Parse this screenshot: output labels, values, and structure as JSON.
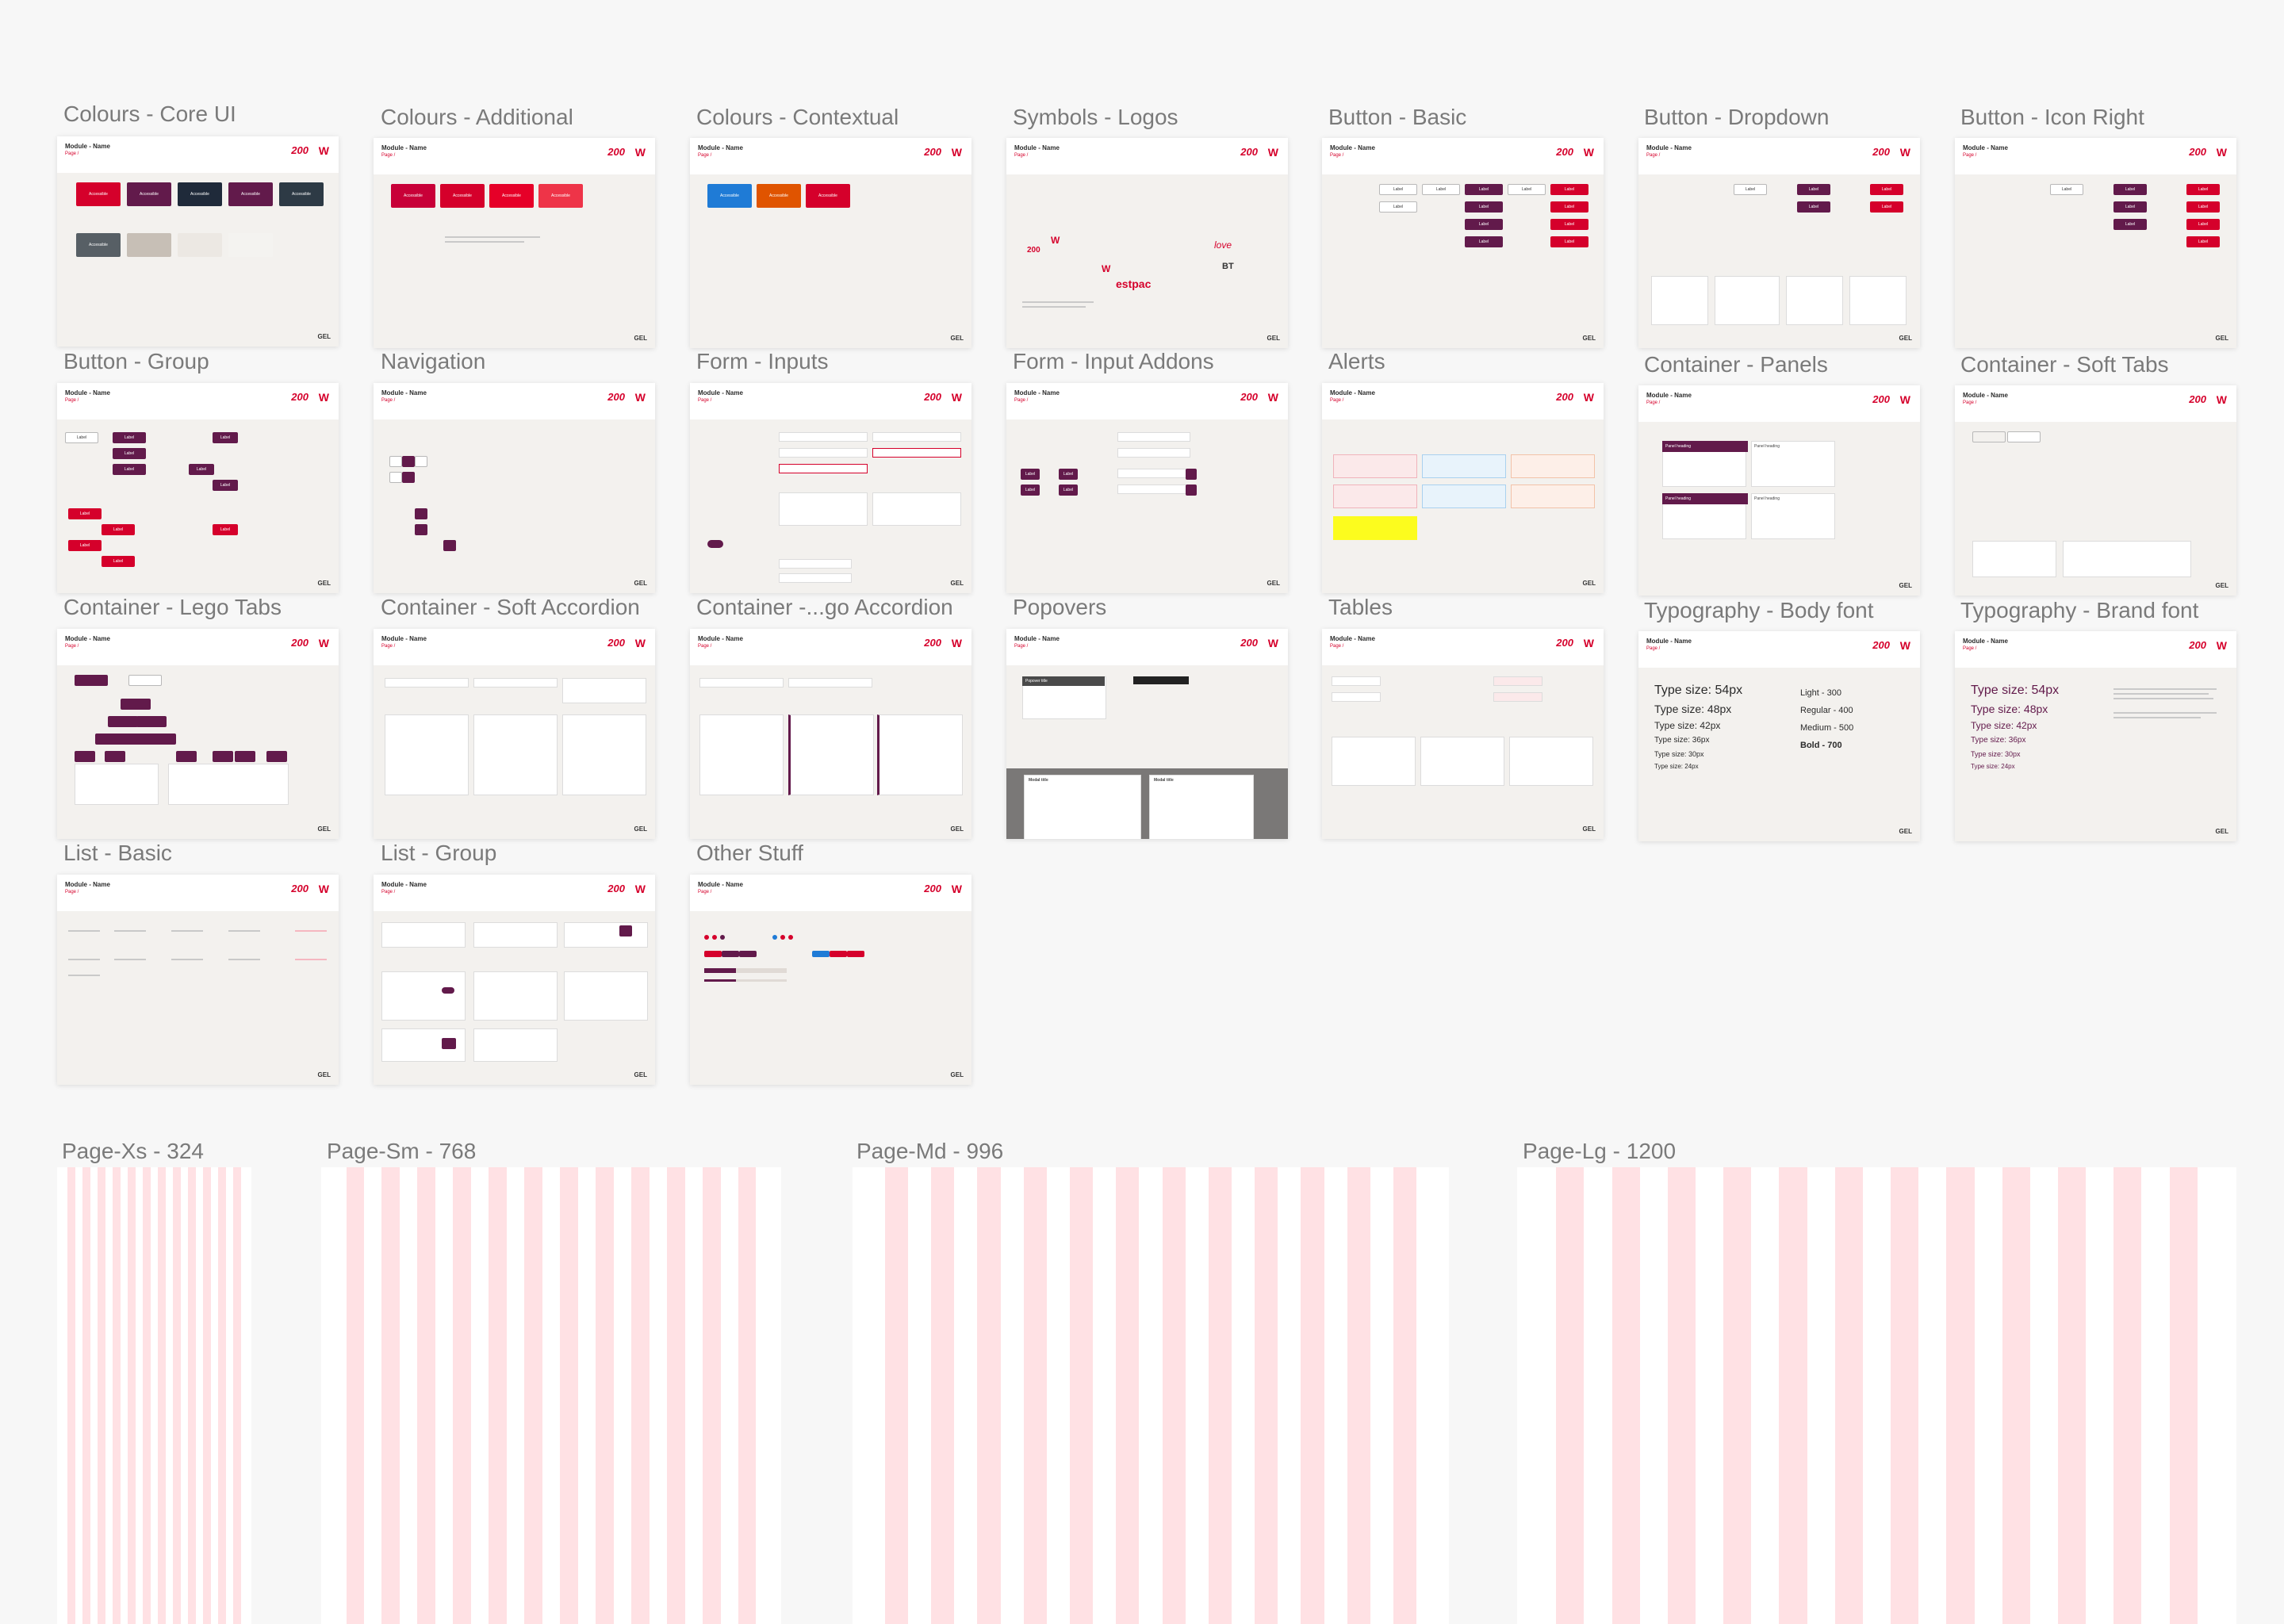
{
  "boards": {
    "colours_core": "Colours - Core UI",
    "colours_additional": "Colours - Additional",
    "colours_contextual": "Colours - Contextual",
    "symbols_logos": "Symbols - Logos",
    "button_basic": "Button - Basic",
    "button_dropdown": "Button - Dropdown",
    "button_icon_right": "Button - Icon Right",
    "button_group": "Button - Group",
    "navigation": "Navigation",
    "form_inputs": "Form - Inputs",
    "form_input_addons": "Form - Input Addons",
    "alerts": "Alerts",
    "container_panels": "Container - Panels",
    "container_soft_tabs": "Container - Soft Tabs",
    "container_lego_tabs": "Container - Lego Tabs",
    "container_soft_accordion": "Container - Soft Accordion",
    "container_lego_accordion": "Container -...go Accordion",
    "popovers": "Popovers",
    "tables": "Tables",
    "typography_body": "Typography - Body font",
    "typography_brand": "Typography - Brand font",
    "list_basic": "List - Basic",
    "list_group": "List - Group",
    "other_stuff": "Other Stuff"
  },
  "grids": {
    "xs": "Page-Xs - 324",
    "sm": "Page-Sm - 768",
    "md": "Page-Md - 996",
    "lg": "Page-Lg - 1200"
  },
  "board_header": {
    "module": "Module - Name",
    "sub": "Page /",
    "badge": "200",
    "logo": "W",
    "gel": "GEL"
  },
  "labels": {
    "accessible": "Accessible",
    "label": "Label",
    "westpac": "estpac",
    "bt": "BT",
    "love": "love",
    "panel_heading": "Panel heading",
    "modal_title": "Modal title",
    "popover_title": "Popover title"
  },
  "typography": {
    "sizes": [
      "Type size: 54px",
      "Type size: 48px",
      "Type size: 42px",
      "Type size: 36px",
      "Type size: 30px",
      "Type size: 24px"
    ],
    "weights": [
      "Light - 300",
      "Regular - 400",
      "Medium - 500",
      "Bold - 700"
    ]
  },
  "colors": {
    "primary_red": "#d5002b",
    "brand_purple": "#621a4b",
    "grid_column": "#ffe1e4"
  }
}
